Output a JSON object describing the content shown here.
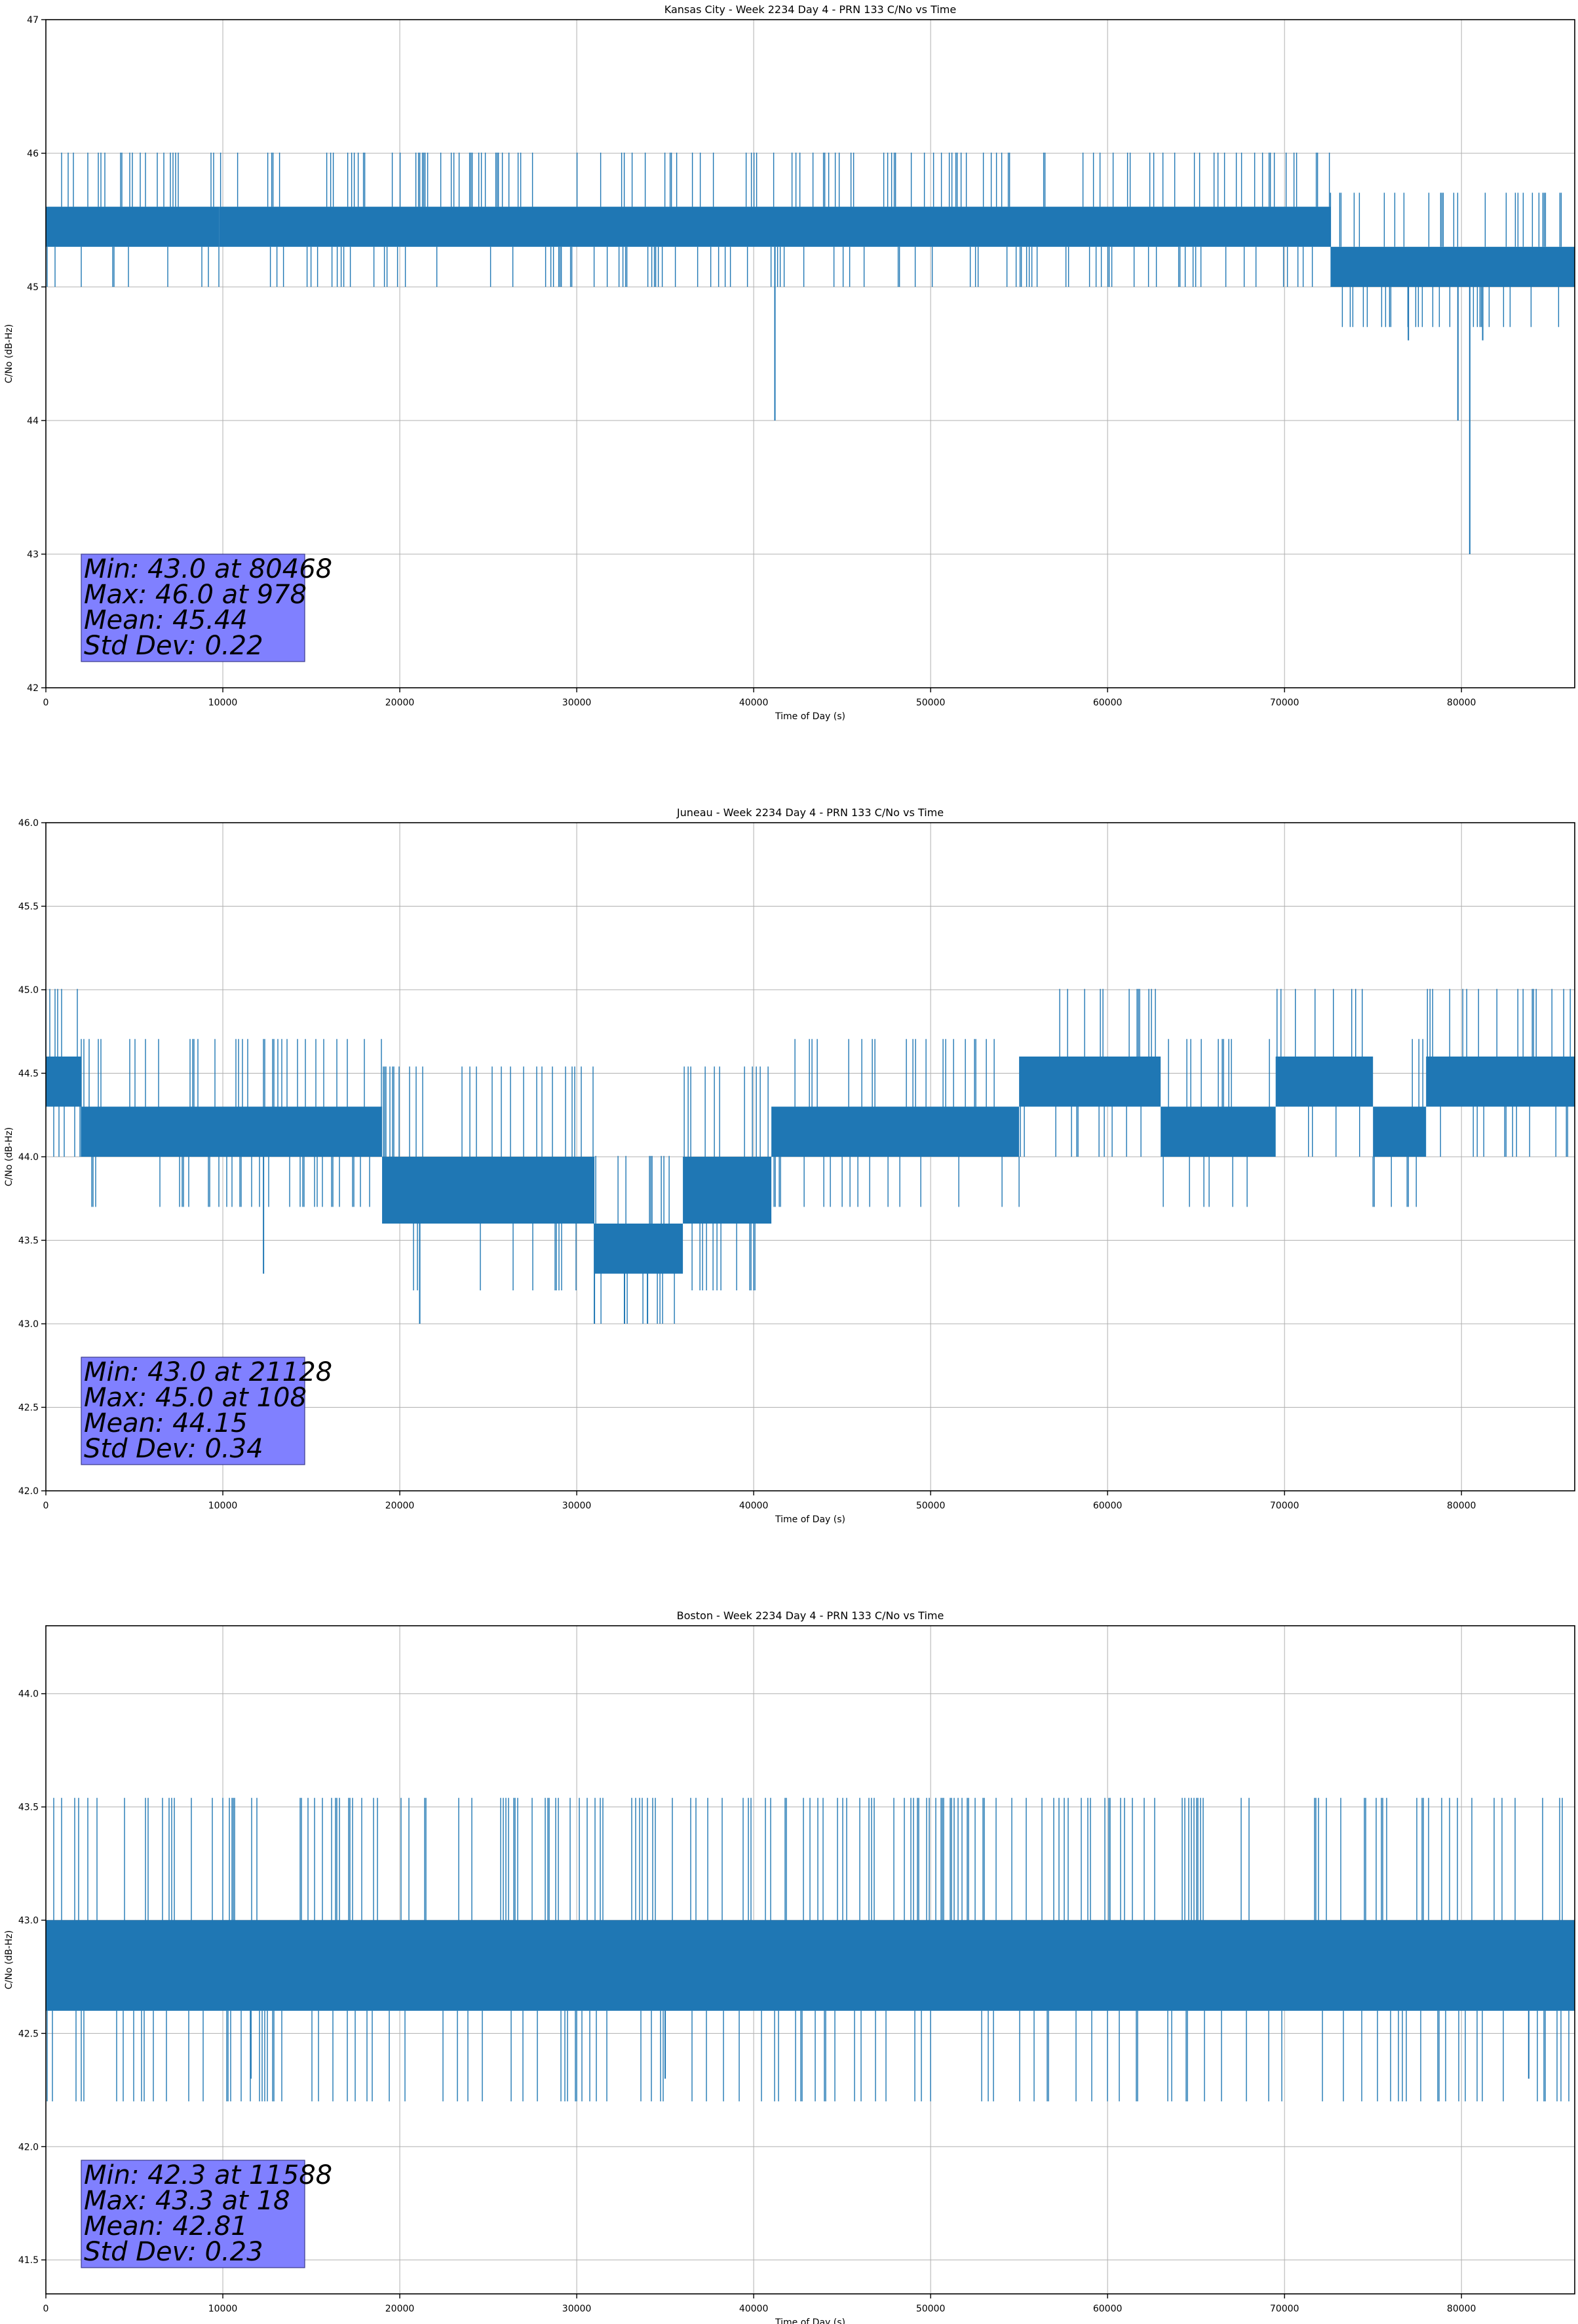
{
  "chart_data": [
    {
      "type": "line",
      "title": "Kansas City - Week 2234 Day 4 - PRN 133 C/No vs Time",
      "xlabel": "Time of Day (s)",
      "ylabel": "C/No (dB-Hz)",
      "xlim": [
        0,
        86400
      ],
      "ylim": [
        42,
        47
      ],
      "x_ticks": [
        0,
        10000,
        20000,
        30000,
        40000,
        50000,
        60000,
        70000,
        80000
      ],
      "x_tick_labels": [
        "0",
        "10000",
        "20000",
        "30000",
        "40000",
        "50000",
        "60000",
        "70000",
        "80000"
      ],
      "y_ticks": [
        42,
        43,
        44,
        45,
        46,
        47
      ],
      "y_tick_labels": [
        "42",
        "43",
        "44",
        "45",
        "46",
        "47"
      ],
      "grid": true,
      "series_color": "#1f77b4",
      "band_segments": [
        {
          "x": [
            0,
            9800
          ],
          "y": [
            45.3,
            45.6
          ]
        },
        {
          "x": [
            9800,
            72600
          ],
          "y": [
            45.3,
            45.6
          ]
        },
        {
          "x": [
            72600,
            86400
          ],
          "y": [
            45.0,
            45.3
          ]
        }
      ],
      "spikes": [
        {
          "x": 41200,
          "y": 44.0
        },
        {
          "x": 79800,
          "y": 44.0
        },
        {
          "x": 80468,
          "y": 43.0
        },
        {
          "x": 77000,
          "y": 44.6
        },
        {
          "x": 81200,
          "y": 44.6
        }
      ],
      "stats": {
        "min": "Min: 43.0 at 80468",
        "max": "Max: 46.0 at 978",
        "mean": "Mean: 45.44",
        "std": "Std Dev: 0.22"
      }
    },
    {
      "type": "line",
      "title": "Juneau - Week 2234 Day 4 - PRN 133 C/No vs Time",
      "xlabel": "Time of Day (s)",
      "ylabel": "C/No (dB-Hz)",
      "xlim": [
        0,
        86400
      ],
      "ylim": [
        42,
        46
      ],
      "x_ticks": [
        0,
        10000,
        20000,
        30000,
        40000,
        50000,
        60000,
        70000,
        80000
      ],
      "x_tick_labels": [
        "0",
        "10000",
        "20000",
        "30000",
        "40000",
        "50000",
        "60000",
        "70000",
        "80000"
      ],
      "y_ticks": [
        42.0,
        42.5,
        43.0,
        43.5,
        44.0,
        44.5,
        45.0,
        45.5,
        46.0
      ],
      "y_tick_labels": [
        "42.0",
        "42.5",
        "43.0",
        "43.5",
        "44.0",
        "44.5",
        "45.0",
        "45.5",
        "46.0"
      ],
      "grid": true,
      "series_color": "#1f77b4",
      "band_segments": [
        {
          "x": [
            0,
            2000
          ],
          "y": [
            44.3,
            44.6
          ]
        },
        {
          "x": [
            2000,
            19000
          ],
          "y": [
            44.0,
            44.3
          ]
        },
        {
          "x": [
            19000,
            31000
          ],
          "y": [
            43.6,
            44.0
          ]
        },
        {
          "x": [
            31000,
            36000
          ],
          "y": [
            43.3,
            43.6
          ]
        },
        {
          "x": [
            36000,
            41000
          ],
          "y": [
            43.6,
            44.0
          ]
        },
        {
          "x": [
            41000,
            55000
          ],
          "y": [
            44.0,
            44.3
          ]
        },
        {
          "x": [
            55000,
            63000
          ],
          "y": [
            44.3,
            44.6
          ]
        },
        {
          "x": [
            63000,
            69500
          ],
          "y": [
            44.0,
            44.3
          ]
        },
        {
          "x": [
            69500,
            75000
          ],
          "y": [
            44.3,
            44.6
          ]
        },
        {
          "x": [
            75000,
            78000
          ],
          "y": [
            44.0,
            44.3
          ]
        },
        {
          "x": [
            78000,
            86400
          ],
          "y": [
            44.3,
            44.6
          ]
        }
      ],
      "spikes": [
        {
          "x": 21128,
          "y": 43.0
        },
        {
          "x": 12300,
          "y": 43.3
        },
        {
          "x": 31000,
          "y": 43.0
        },
        {
          "x": 32700,
          "y": 43.0
        },
        {
          "x": 34000,
          "y": 43.0
        }
      ],
      "stats": {
        "min": "Min: 43.0 at 21128",
        "max": "Max: 45.0 at 108",
        "mean": "Mean: 44.15",
        "std": "Std Dev: 0.34"
      }
    },
    {
      "type": "line",
      "title": "Boston - Week 2234 Day 4 - PRN 133 C/No vs Time",
      "xlabel": "Time of Day (s)",
      "ylabel": "C/No (dB-Hz)",
      "xlim": [
        0,
        86400
      ],
      "ylim": [
        41.35,
        44.3
      ],
      "x_ticks": [
        0,
        10000,
        20000,
        30000,
        40000,
        50000,
        60000,
        70000,
        80000
      ],
      "x_tick_labels": [
        "0",
        "10000",
        "20000",
        "30000",
        "40000",
        "50000",
        "60000",
        "70000",
        "80000"
      ],
      "y_ticks": [
        41.5,
        42.0,
        42.5,
        43.0,
        43.5,
        44.0
      ],
      "y_tick_labels": [
        "41.5",
        "42.0",
        "42.5",
        "43.0",
        "43.5",
        "44.0"
      ],
      "grid": true,
      "series_color": "#1f77b4",
      "band_segments": [
        {
          "x": [
            0,
            86400
          ],
          "y": [
            42.6,
            43.0
          ]
        }
      ],
      "spikes": [
        {
          "x": 11588,
          "y": 42.3
        },
        {
          "x": 35000,
          "y": 42.3
        },
        {
          "x": 83800,
          "y": 42.3
        }
      ],
      "stats": {
        "min": "Min: 42.3 at 11588",
        "max": "Max: 43.3 at 18",
        "mean": "Mean: 42.81",
        "std": "Std Dev: 0.23"
      }
    }
  ]
}
